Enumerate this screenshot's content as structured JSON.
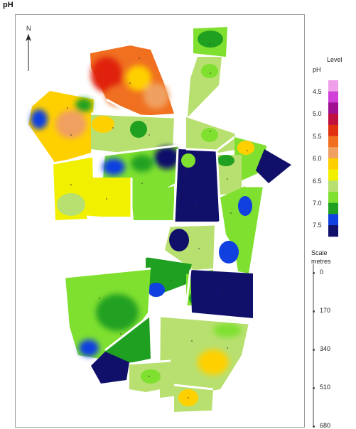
{
  "map": {
    "title": "pH",
    "north_label": "N"
  },
  "legend": {
    "title_pH": "pH",
    "title_level": "Level",
    "colors": [
      "#f0a0e8",
      "#d040d8",
      "#a01090",
      "#c01040",
      "#e03010",
      "#f07020",
      "#f0a060",
      "#ffd000",
      "#f0f000",
      "#b8e070",
      "#80e030",
      "#20a020",
      "#1040e0",
      "#10106a"
    ],
    "ticks": [
      "4.5",
      "5.0",
      "5.5",
      "6.0",
      "6.5",
      "7.0",
      "7.5"
    ]
  },
  "scale": {
    "title_line1": "Scale",
    "title_line2": "metres",
    "ticks": [
      "0",
      "170",
      "340",
      "510",
      "680"
    ]
  }
}
